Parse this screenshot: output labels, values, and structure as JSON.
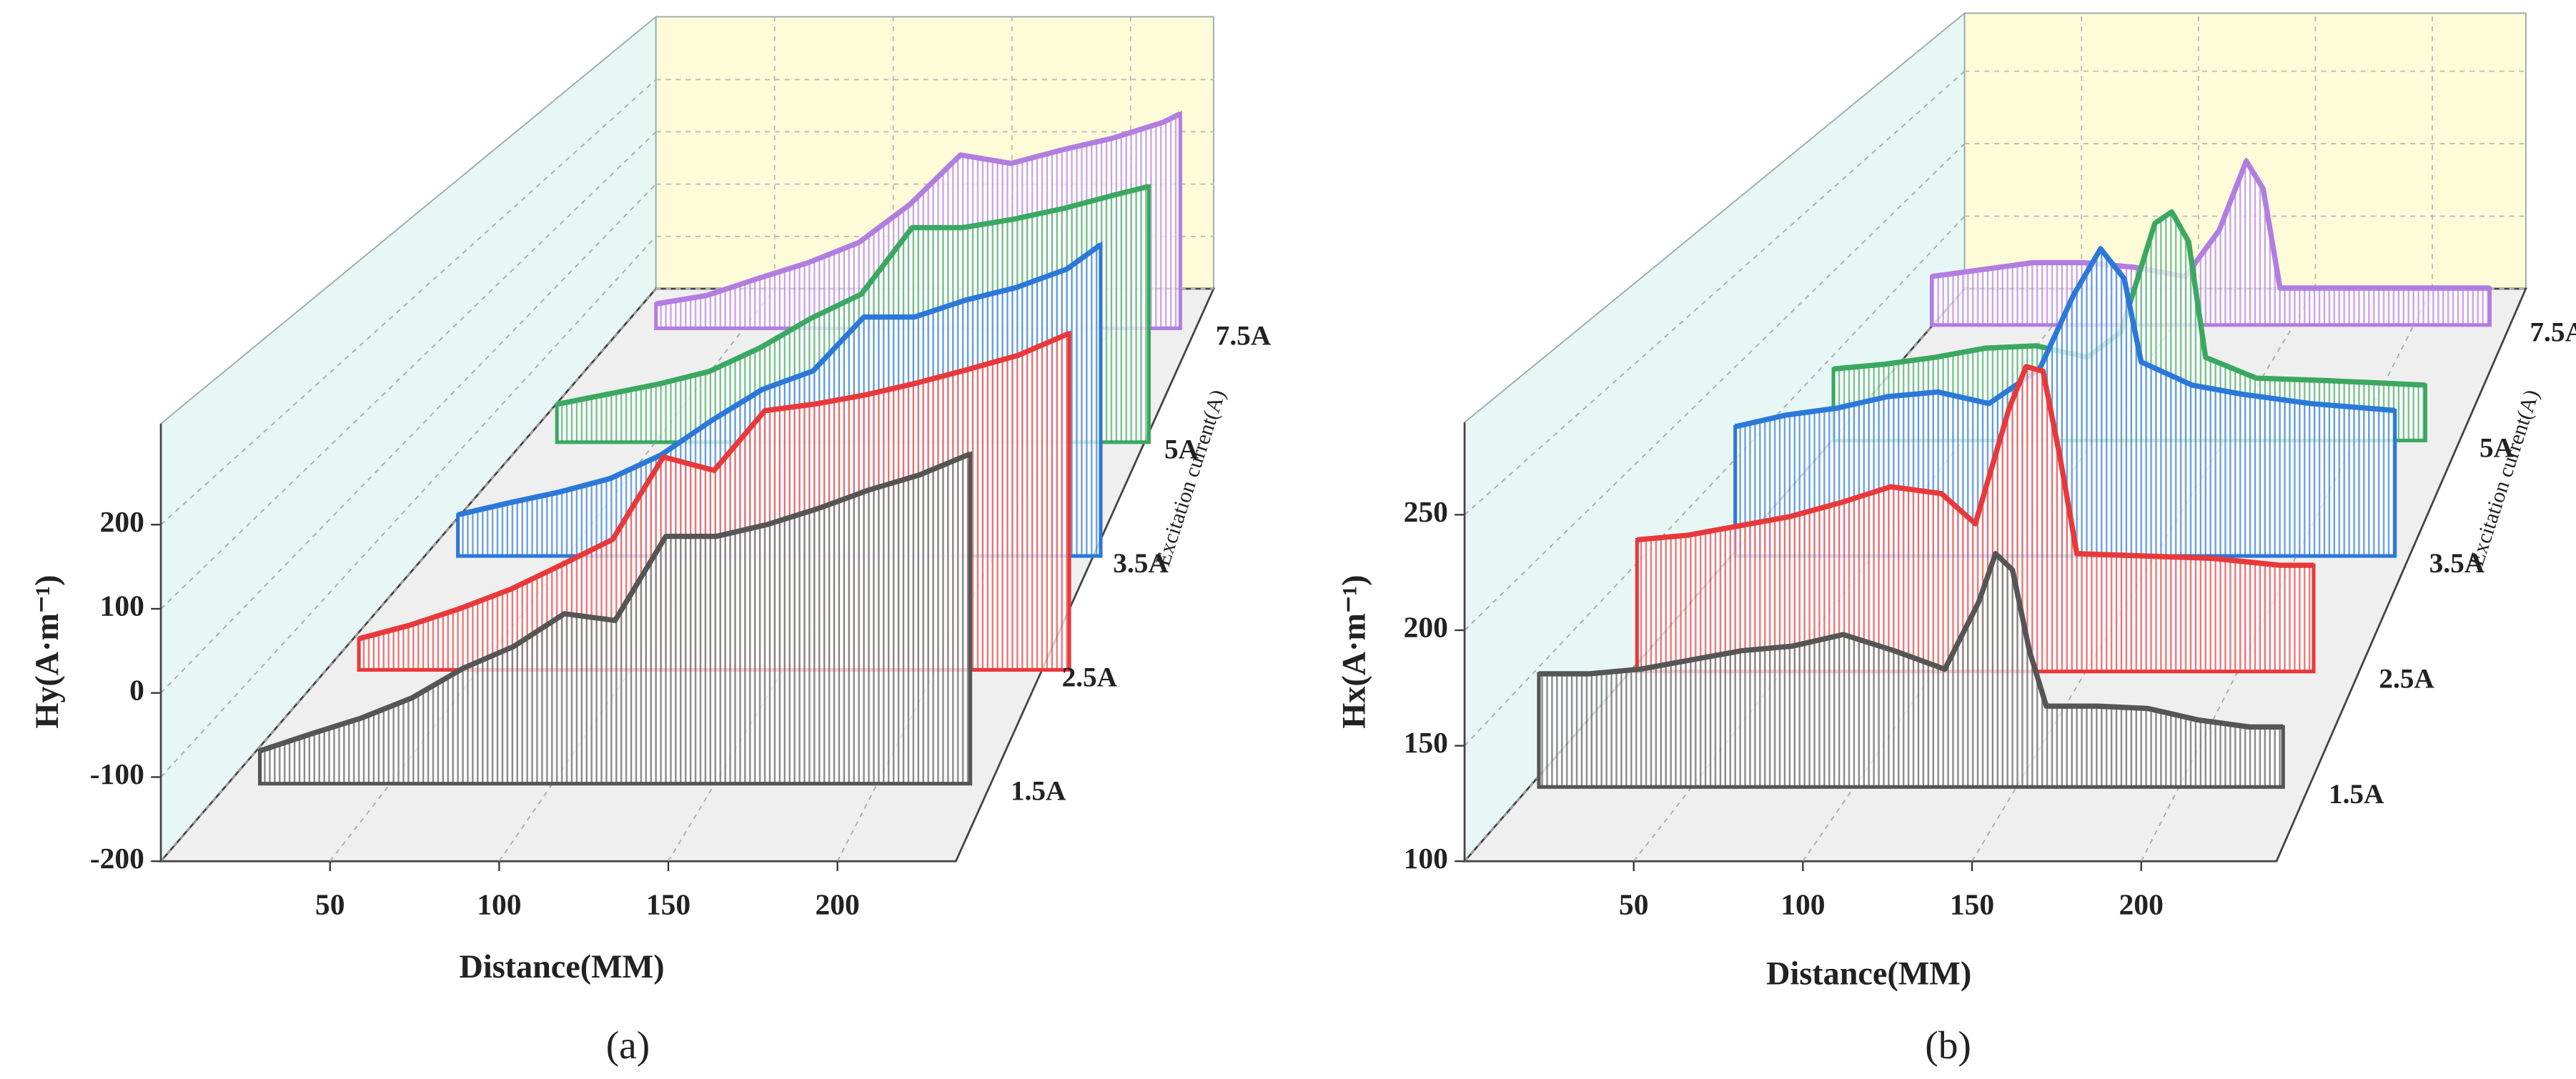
{
  "chart_data": [
    {
      "type": "waterfall",
      "label": "(a)",
      "x_label": "Distance(MM)",
      "y_label": "Hy(A·m⁻¹)",
      "depth_label": "Excitation current(A)",
      "xlim": [
        0,
        235
      ],
      "xticks": [
        50,
        100,
        150,
        200
      ],
      "ylim": [
        -200,
        320
      ],
      "yticks": [
        -200,
        -100,
        0,
        100,
        200
      ],
      "grid": true,
      "series": [
        {
          "name": "1.5A",
          "color": "#555555",
          "x": [
            0,
            15,
            30,
            45,
            60,
            75,
            90,
            105,
            120,
            135,
            150,
            165,
            180,
            195,
            210
          ],
          "values": [
            -161,
            -141,
            -122,
            -98,
            -63,
            -37,
            2,
            -6,
            94,
            94,
            108,
            127,
            149,
            167,
            192
          ]
        },
        {
          "name": "2.5A",
          "color": "#e8393a",
          "x": [
            0,
            15,
            30,
            45,
            60,
            75,
            90,
            105,
            120,
            135,
            150,
            165,
            180,
            195,
            210
          ],
          "values": [
            -163,
            -147,
            -127,
            -104,
            -75,
            -45,
            53,
            37,
            108,
            116,
            127,
            141,
            157,
            174,
            200
          ]
        },
        {
          "name": "3.5A",
          "color": "#2b78d8",
          "x": [
            0,
            15,
            30,
            45,
            60,
            75,
            90,
            105,
            120,
            135,
            150,
            165,
            180,
            190
          ],
          "values": [
            -151,
            -137,
            -124,
            -108,
            -80,
            -39,
            -2,
            20,
            84,
            84,
            104,
            119,
            141,
            170
          ]
        },
        {
          "name": "5A",
          "color": "#3aa860",
          "x": [
            0,
            15,
            30,
            45,
            60,
            75,
            90,
            105,
            120,
            135,
            150,
            165,
            175
          ],
          "values": [
            -155,
            -143,
            -131,
            -116,
            -88,
            -53,
            -24,
            55,
            55,
            65,
            78,
            94,
            104
          ]
        },
        {
          "name": "7.5A",
          "color": "#b27de0",
          "x": [
            0,
            15,
            30,
            45,
            60,
            75,
            90,
            105,
            120,
            135,
            150,
            155
          ],
          "values": [
            -171,
            -161,
            -141,
            -122,
            -98,
            -53,
            6,
            -4,
            12,
            26,
            45,
            55
          ]
        }
      ]
    },
    {
      "type": "waterfall",
      "label": "(b)",
      "x_label": "Distance(MM)",
      "y_label": "Hx(A·m⁻¹)",
      "depth_label": "Excitation current(A)",
      "xlim": [
        0,
        240
      ],
      "xticks": [
        50,
        100,
        150,
        200
      ],
      "ylim": [
        100,
        290
      ],
      "yticks": [
        100,
        150,
        200,
        250
      ],
      "grid": true,
      "series": [
        {
          "name": "1.5A",
          "color": "#555555",
          "x": [
            0,
            15,
            30,
            45,
            60,
            75,
            90,
            105,
            120,
            130,
            135,
            140,
            145,
            150,
            165,
            180,
            195,
            210,
            220
          ],
          "values": [
            149,
            149,
            151,
            155,
            159,
            161,
            166,
            159,
            151,
            180,
            201,
            194,
            159,
            135,
            135,
            134,
            129,
            126,
            126
          ]
        },
        {
          "name": "2.5A",
          "color": "#e8393a",
          "x": [
            0,
            15,
            30,
            45,
            60,
            75,
            90,
            100,
            110,
            115,
            120,
            125,
            130,
            150,
            170,
            190,
            200
          ],
          "values": [
            157,
            159,
            163,
            167,
            173,
            180,
            177,
            164,
            214,
            232,
            230,
            193,
            151,
            150,
            149,
            146,
            146
          ]
        },
        {
          "name": "3.5A",
          "color": "#2b78d8",
          "x": [
            0,
            15,
            30,
            45,
            60,
            75,
            90,
            100,
            108,
            115,
            120,
            135,
            150,
            170,
            195
          ],
          "values": [
            156,
            161,
            164,
            169,
            171,
            166,
            181,
            213,
            233,
            220,
            184,
            174,
            170,
            166,
            163
          ]
        },
        {
          "name": "5A",
          "color": "#3aa860",
          "x": [
            0,
            15,
            30,
            45,
            60,
            75,
            85,
            95,
            100,
            105,
            110,
            125,
            145,
            175
          ],
          "values": [
            131,
            133,
            136,
            140,
            141,
            136,
            147,
            194,
            199,
            186,
            136,
            127,
            126,
            124
          ]
        },
        {
          "name": "7.5A",
          "color": "#b27de0",
          "x": [
            0,
            15,
            30,
            45,
            60,
            75,
            85,
            93,
            98,
            103,
            120,
            145,
            165
          ],
          "values": [
            121,
            124,
            127,
            127,
            125,
            121,
            141,
            171,
            159,
            116,
            116,
            116,
            116
          ]
        }
      ]
    }
  ]
}
